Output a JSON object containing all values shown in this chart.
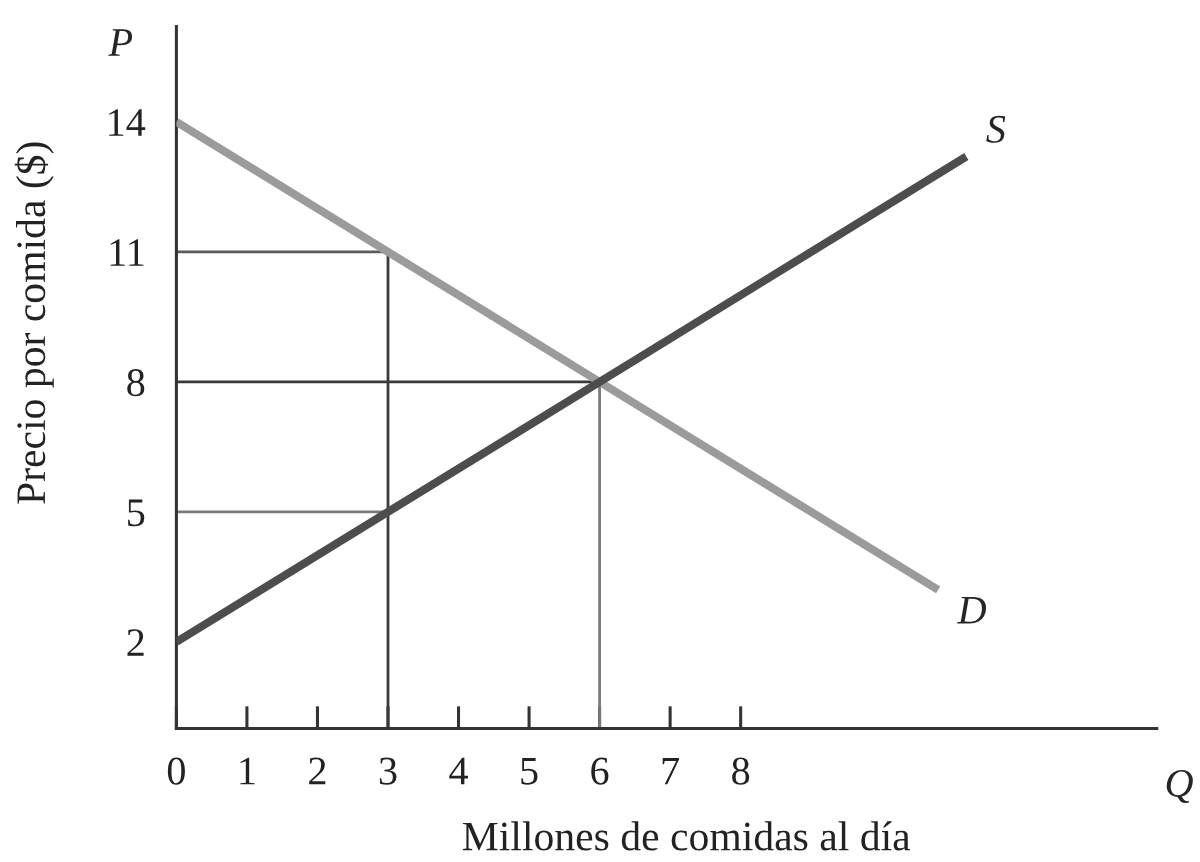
{
  "chart_data": {
    "type": "line",
    "xlabel": "Millones de comidas al día",
    "ylabel": "Precio por comida ($)",
    "annotations": [
      "P",
      "Q"
    ],
    "xlim": [
      0,
      13.9
    ],
    "ylim": [
      0,
      16.2
    ],
    "xticks": [
      0,
      1,
      2,
      3,
      4,
      5,
      6,
      7,
      8
    ],
    "yticks": [
      2,
      5,
      8,
      11,
      14
    ],
    "grid": false,
    "legend": false,
    "line_style": "solid",
    "series": [
      {
        "color": "#5a5a5a",
        "x": [
          0,
          3
        ],
        "values": [
          11,
          11
        ]
      },
      {
        "color": "#3a3a3a",
        "x": [
          3,
          3
        ],
        "values": [
          11,
          0
        ]
      },
      {
        "color": "#3a3a3a",
        "x": [
          0,
          6
        ],
        "values": [
          8,
          8
        ]
      },
      {
        "color": "#7a7a7a",
        "x": [
          6,
          6
        ],
        "values": [
          8,
          0
        ]
      },
      {
        "color": "#7a7a7a",
        "x": [
          0,
          3
        ],
        "values": [
          5,
          5
        ]
      },
      {
        "name": "D",
        "color": "#9b9b9b",
        "x": [
          0,
          10.8
        ],
        "values": [
          14,
          3.2
        ]
      },
      {
        "name": "S",
        "color": "#4d4d4d",
        "x": [
          0,
          11.2
        ],
        "values": [
          2,
          13.2
        ]
      }
    ]
  }
}
